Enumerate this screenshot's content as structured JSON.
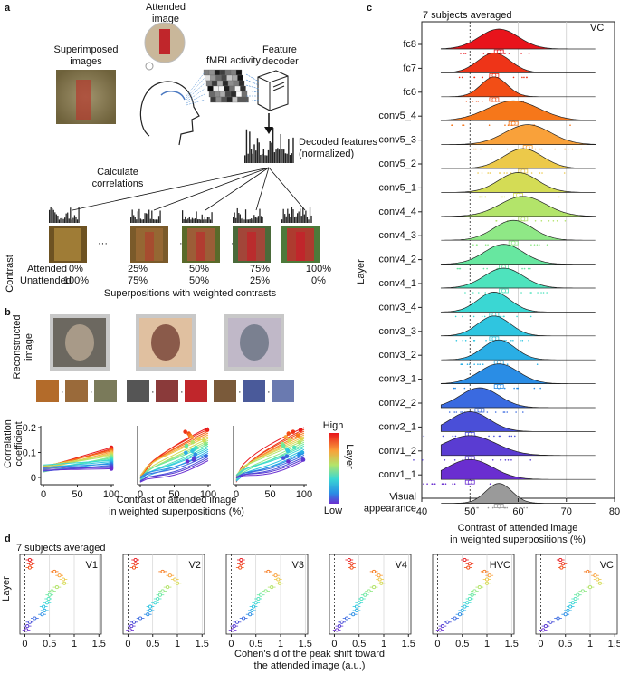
{
  "panel_a": {
    "letter": "a",
    "attended_image": "Attended image",
    "superimposed_images": "Superimposed images",
    "fmri_activity": "fMRI activity",
    "feature_decoder": "Feature decoder",
    "decoded_features": "Decoded features (normalized)",
    "calculate_correlations": "Calculate correlations",
    "contrast_label": "Contrast",
    "attended_label": "Attended",
    "unattended_label": "Unattended",
    "attended_values": [
      "0%",
      "25%",
      "50%",
      "75%",
      "100%"
    ],
    "unattended_values": [
      "100%",
      "75%",
      "50%",
      "25%",
      "0%"
    ],
    "superpositions_caption": "Superpositions with weighted contrasts"
  },
  "panel_b": {
    "letter": "b",
    "reconstructed_image": "Reconstructed image",
    "ylabel": "Correlation coefficient",
    "xlabel": "Contrast of attended image in weighted superpositions (%)",
    "yticks": [
      "0",
      "0.1",
      "0.2"
    ],
    "xticks": [
      "0",
      "50",
      "100"
    ],
    "colorbar_high": "High",
    "colorbar_low": "Low",
    "colorbar_title": "Layer"
  },
  "panel_c": {
    "letter": "c",
    "title": "7 subjects averaged",
    "region": "VC",
    "ylabel": "Layer",
    "xlabel": "Contrast of attended image in weighted superpositions (%)",
    "xticks": [
      "40",
      "50",
      "60",
      "70",
      "80"
    ],
    "visual_appearance": "Visual appearance"
  },
  "panel_d": {
    "letter": "d",
    "title": "7 subjects averaged",
    "ylabel": "Layer",
    "xlabel": "Cohen's d of the peak shift toward the attended image (a.u.)",
    "xticks": [
      "0",
      "0.5",
      "1",
      "1.5"
    ]
  },
  "chart_data": [
    {
      "type": "area",
      "title": "7 subjects averaged",
      "xlabel": "Contrast of attended image in weighted superpositions (%)",
      "ylabel": "Layer",
      "xlim": [
        40,
        80
      ],
      "categories": [
        "fc8",
        "fc7",
        "fc6",
        "conv5_4",
        "conv5_3",
        "conv5_2",
        "conv5_1",
        "conv4_4",
        "conv4_3",
        "conv4_2",
        "conv4_1",
        "conv3_4",
        "conv3_3",
        "conv3_2",
        "conv3_1",
        "conv2_2",
        "conv2_1",
        "conv1_2",
        "conv1_1",
        "Visual appearance"
      ],
      "peak": [
        56,
        55,
        55,
        59,
        62,
        61,
        60,
        61,
        59,
        57,
        57,
        55,
        55,
        56,
        56,
        52,
        50,
        50,
        50,
        56
      ],
      "spread": [
        6,
        5,
        4,
        8,
        7,
        6,
        6,
        7,
        6,
        6,
        6,
        5,
        5,
        5,
        6,
        6,
        6,
        8,
        7,
        4
      ],
      "colors": [
        "#e8141b",
        "#ee3418",
        "#f24e16",
        "#f6771a",
        "#f9a13a",
        "#ecc94a",
        "#d4dc55",
        "#b3e46a",
        "#8fe886",
        "#67e7a0",
        "#4ee3bd",
        "#3ad7d3",
        "#2fc5e0",
        "#2aaee5",
        "#2a8de5",
        "#3a6ae0",
        "#4a4fd8",
        "#5a3cd2",
        "#6a2ed0",
        "#9a9a9a"
      ],
      "reference_line": 50
    },
    {
      "type": "scatter",
      "title": "7 subjects averaged",
      "xlabel": "Cohen's d of the peak shift toward the attended image (a.u.)",
      "ylabel": "Layer",
      "xlim": [
        -0.1,
        1.55
      ],
      "panels": [
        {
          "name": "V1",
          "values": [
            0.1,
            0.12,
            0.1,
            0.6,
            0.7,
            0.78,
            0.8,
            0.65,
            0.55,
            0.5,
            0.48,
            0.45,
            0.38,
            0.4,
            0.35,
            0.2,
            0.1,
            0.05,
            0.03
          ]
        },
        {
          "name": "V2",
          "values": [
            0.15,
            0.15,
            0.12,
            0.7,
            0.85,
            0.95,
            1.0,
            0.8,
            0.7,
            0.65,
            0.6,
            0.55,
            0.45,
            0.45,
            0.4,
            0.25,
            0.12,
            0.07,
            0.04
          ]
        },
        {
          "name": "V3",
          "values": [
            0.2,
            0.2,
            0.18,
            0.75,
            0.9,
            0.95,
            0.98,
            0.82,
            0.7,
            0.6,
            0.55,
            0.5,
            0.45,
            0.42,
            0.38,
            0.25,
            0.12,
            0.06,
            0.03
          ]
        },
        {
          "name": "V4",
          "values": [
            0.3,
            0.35,
            0.35,
            0.8,
            0.9,
            0.92,
            0.95,
            0.8,
            0.7,
            0.62,
            0.55,
            0.5,
            0.45,
            0.45,
            0.38,
            0.25,
            0.15,
            0.1,
            0.05
          ]
        },
        {
          "name": "HVC",
          "values": [
            0.55,
            0.65,
            0.62,
            0.95,
            1.05,
            1.0,
            1.0,
            0.85,
            0.75,
            0.7,
            0.65,
            0.6,
            0.55,
            0.5,
            0.45,
            0.35,
            0.2,
            0.1,
            0.05
          ]
        },
        {
          "name": "VC",
          "values": [
            0.4,
            0.45,
            0.42,
            0.95,
            1.1,
            1.15,
            1.2,
            1.0,
            0.85,
            0.75,
            0.7,
            0.65,
            0.6,
            0.55,
            0.5,
            0.35,
            0.2,
            0.1,
            0.05
          ]
        }
      ]
    }
  ]
}
